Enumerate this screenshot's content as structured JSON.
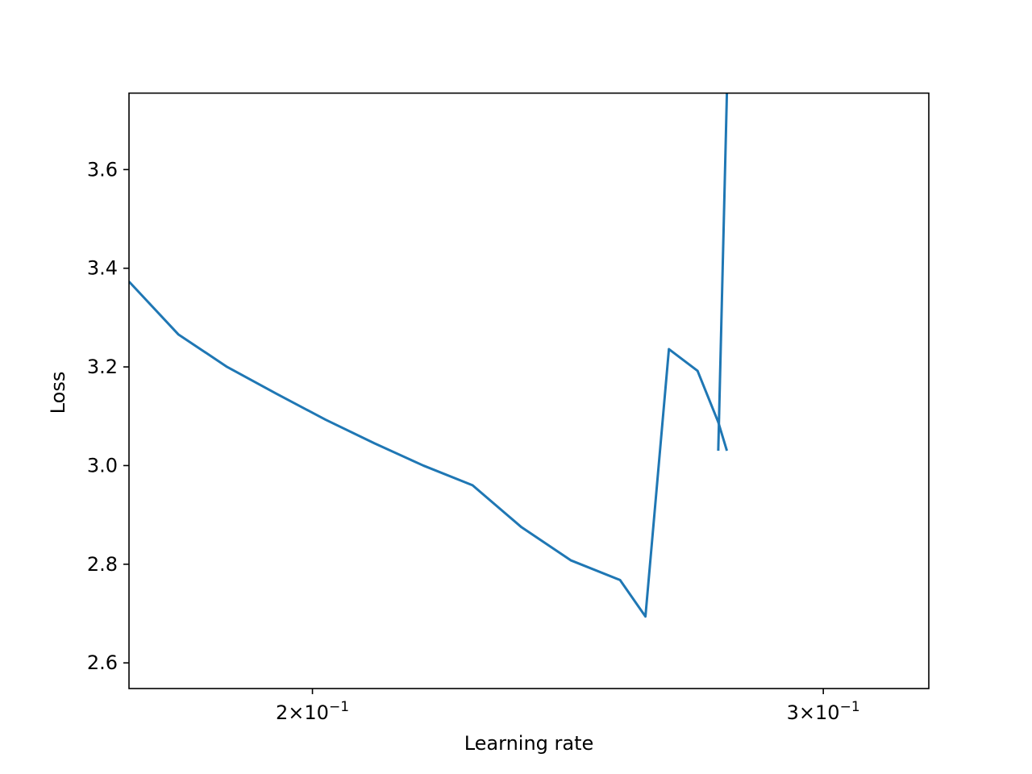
{
  "chart_data": {
    "type": "line",
    "title": "",
    "xlabel": "Learning rate",
    "ylabel": "Loss",
    "x_scale": "log",
    "xlim": [
      0.1729,
      0.3262
    ],
    "ylim": [
      2.548,
      3.755
    ],
    "grid": false,
    "x_ticks": [
      {
        "value": 0.2,
        "mantissa": "2",
        "exponent": "−1"
      },
      {
        "value": 0.3,
        "mantissa": "3",
        "exponent": "−1"
      }
    ],
    "y_ticks": [
      {
        "value": 2.6,
        "label": "2.6"
      },
      {
        "value": 2.8,
        "label": "2.8"
      },
      {
        "value": 3.0,
        "label": "3.0"
      },
      {
        "value": 3.2,
        "label": "3.2"
      },
      {
        "value": 3.4,
        "label": "3.4"
      },
      {
        "value": 3.6,
        "label": "3.6"
      }
    ],
    "series": [
      {
        "color": "#1f77b4",
        "x": [
          0.1729,
          0.1798,
          0.1869,
          0.1943,
          0.2021,
          0.2101,
          0.2184,
          0.2271,
          0.2361,
          0.2455,
          0.2553,
          0.2605,
          0.2654,
          0.2715,
          0.276,
          0.2779
        ],
        "y": [
          3.373,
          3.266,
          3.2,
          3.146,
          3.093,
          3.045,
          3.0,
          2.96,
          2.875,
          2.808,
          2.768,
          2.694,
          3.236,
          3.192,
          3.088,
          3.03
        ]
      },
      {
        "color": "#1f77b4",
        "x": [
          0.276,
          0.2779
        ],
        "y": [
          3.03,
          3.755
        ]
      }
    ]
  }
}
